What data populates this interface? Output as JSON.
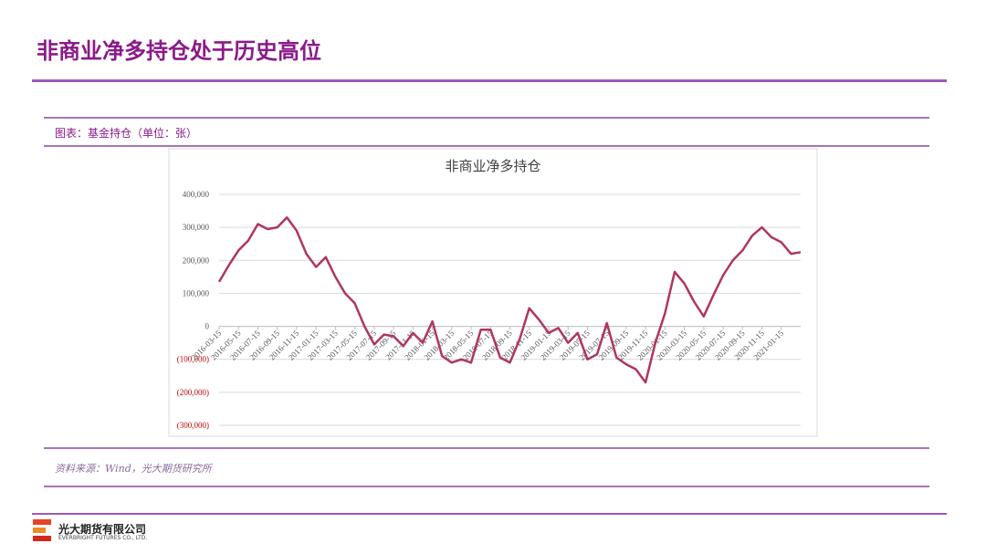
{
  "page": {
    "title": "非商业净多持仓处于历史高位",
    "caption": "图表：基金持仓（单位：张）",
    "source": "资料来源：Wind，光大期货研究所",
    "company_cn": "光大期货有限公司",
    "company_en": "EVERBRIGHT FUTURES CO., LTD."
  },
  "chart_data": {
    "type": "line",
    "title": "非商业净多持仓",
    "categories": [
      "2016-03-15",
      null,
      "2016-05-15",
      null,
      "2016-07-15",
      null,
      "2016-09-15",
      null,
      "2016-11-15",
      null,
      "2017-01-15",
      null,
      "2017-03-15",
      null,
      "2017-05-15",
      null,
      "2017-07-15",
      null,
      "2017-09-15",
      null,
      "2017-11-15",
      null,
      "2018-01-15",
      null,
      "2018-03-15",
      null,
      "2018-05-15",
      null,
      "2018-07-15",
      null,
      "2018-09-15",
      null,
      "2018-11-15",
      null,
      "2019-01-15",
      null,
      "2019-03-15",
      null,
      "2019-05-15",
      null,
      "2019-07-15",
      null,
      "2019-09-15",
      null,
      "2019-11-15",
      null,
      "2020-01-15",
      null,
      "2020-03-15",
      null,
      "2020-05-15",
      null,
      "2020-07-15",
      null,
      "2020-09-15",
      null,
      "2020-11-15",
      null,
      "2021-01-15",
      null,
      null
    ],
    "series": [
      {
        "name": "非商业净多持仓",
        "color": "#b0365c",
        "values": [
          135000,
          185000,
          230000,
          260000,
          310000,
          295000,
          300000,
          330000,
          290000,
          220000,
          180000,
          210000,
          150000,
          100000,
          70000,
          0,
          -55000,
          -25000,
          -30000,
          -60000,
          -20000,
          -50000,
          15000,
          -90000,
          -110000,
          -100000,
          -110000,
          -10000,
          -10000,
          -95000,
          -110000,
          -40000,
          55000,
          20000,
          -20000,
          -5000,
          -50000,
          -20000,
          -100000,
          -85000,
          10000,
          -95000,
          -115000,
          -130000,
          -170000,
          -50000,
          40000,
          165000,
          130000,
          75000,
          30000,
          95000,
          155000,
          200000,
          230000,
          275000,
          300000,
          270000,
          255000,
          220000,
          225000
        ]
      }
    ],
    "ylim": [
      -300000,
      400000
    ],
    "yticks": [
      {
        "value": -300000,
        "label": "(300,000)"
      },
      {
        "value": -200000,
        "label": "(200,000)"
      },
      {
        "value": -100000,
        "label": "(100,000)"
      },
      0,
      {
        "value": 100000,
        "label": "100,000"
      },
      {
        "value": 200000,
        "label": "200,000"
      },
      {
        "value": 300000,
        "label": "300,000"
      },
      {
        "value": 400000,
        "label": "400,000"
      }
    ],
    "grid": true,
    "negative_label_color": "#c00000"
  }
}
